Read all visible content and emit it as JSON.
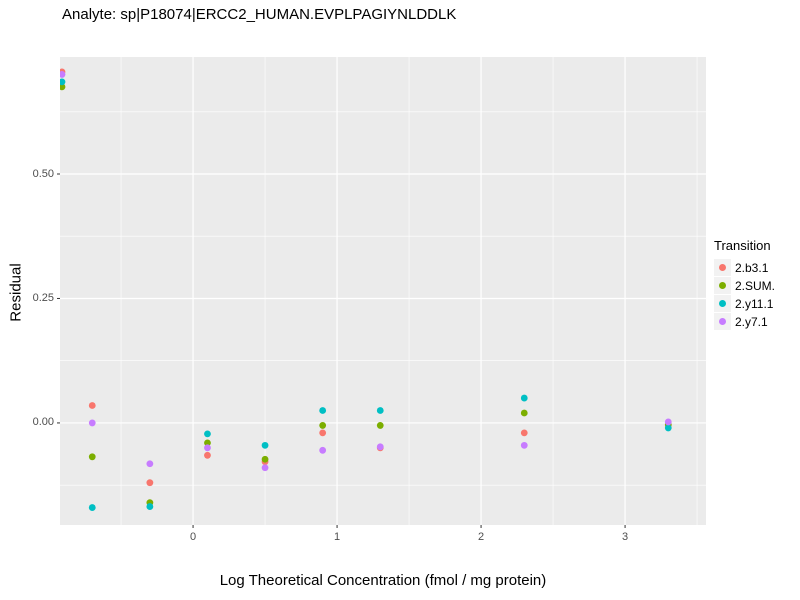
{
  "chart_data": {
    "type": "scatter",
    "title": "Analyte: sp|P18074|ERCC2_HUMAN.EVPLPAGIYNLDDLK",
    "xlabel": "Log Theoretical Concentration (fmol / mg protein)",
    "ylabel": "Residual",
    "legend_title": "Transition",
    "legend_position": "right",
    "panel_background": "#EBEBEB",
    "grid_major_color": "#FFFFFF",
    "grid_minor_color": "#FFFFFF",
    "tick_color": "#333333",
    "grid": true,
    "xlim": [
      -0.924,
      3.562
    ],
    "ylim": [
      -0.205,
      0.735
    ],
    "x_ticks": [
      0,
      1,
      2,
      3
    ],
    "x_tick_labels": [
      "0",
      "1",
      "2",
      "3"
    ],
    "x_minor_ticks": [
      -0.5,
      0.5,
      1.5,
      2.5,
      3.5
    ],
    "y_ticks": [
      0,
      0.25,
      0.5
    ],
    "y_tick_labels": [
      "0.00",
      "0.25",
      "0.50"
    ],
    "y_minor_ticks": [
      -0.125,
      0.125,
      0.375,
      0.625
    ],
    "series": [
      {
        "name": "2.b3.1",
        "color": "#F8766D",
        "points": [
          [
            -0.91,
            0.705
          ],
          [
            -0.7,
            0.035
          ],
          [
            -0.3,
            -0.12
          ],
          [
            0.1,
            -0.065
          ],
          [
            0.5,
            -0.078
          ],
          [
            0.9,
            -0.02
          ],
          [
            1.3,
            -0.05
          ],
          [
            2.3,
            -0.02
          ],
          [
            3.3,
            -0.005
          ]
        ]
      },
      {
        "name": "2.SUM.",
        "color": "#7CAE00",
        "points": [
          [
            -0.91,
            0.675
          ],
          [
            -0.7,
            -0.068
          ],
          [
            -0.3,
            -0.16
          ],
          [
            0.1,
            -0.04
          ],
          [
            0.5,
            -0.073
          ],
          [
            0.9,
            -0.005
          ],
          [
            1.3,
            -0.005
          ],
          [
            2.3,
            0.02
          ],
          [
            3.3,
            -0.003
          ]
        ]
      },
      {
        "name": "2.y11.1",
        "color": "#00BFC4",
        "points": [
          [
            -0.91,
            0.685
          ],
          [
            -0.7,
            -0.17
          ],
          [
            -0.3,
            -0.168
          ],
          [
            0.1,
            -0.022
          ],
          [
            0.5,
            -0.045
          ],
          [
            0.9,
            0.025
          ],
          [
            1.3,
            0.025
          ],
          [
            2.3,
            0.05
          ],
          [
            3.3,
            -0.01
          ]
        ]
      },
      {
        "name": "2.y7.1",
        "color": "#C77CFF",
        "points": [
          [
            -0.91,
            0.7
          ],
          [
            -0.7,
            0.0
          ],
          [
            -0.3,
            -0.082
          ],
          [
            0.1,
            -0.05
          ],
          [
            0.5,
            -0.09
          ],
          [
            0.9,
            -0.055
          ],
          [
            1.3,
            -0.048
          ],
          [
            2.3,
            -0.045
          ],
          [
            3.3,
            0.002
          ]
        ]
      }
    ]
  }
}
